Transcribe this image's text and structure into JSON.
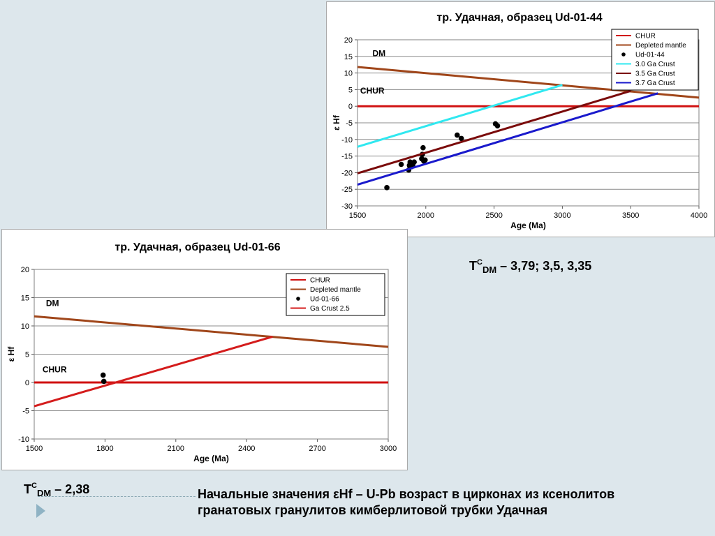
{
  "captions": {
    "tdm1_label": "T",
    "tdm1_sup": "C",
    "tdm1_sub": "DM",
    "tdm1_values": " – 3,79;  3,5, 3,35",
    "tdm2_label": "T",
    "tdm2_sup": "C",
    "tdm2_sub": "DM",
    "tdm2_values": " – 2,38",
    "footer_line1": "Начальные значения εHf – U-Pb возраст в цирконах из ксенолитов",
    "footer_line2": "гранатовых гранулитов кимберлитовой  трубки Удачная"
  },
  "chart_data": [
    {
      "type": "line",
      "title": "тр. Удачная, образец Ud-01-44",
      "xlabel": "Age (Ma)",
      "ylabel": "ε Hf",
      "xlim": [
        1500,
        4000
      ],
      "ylim": [
        -30,
        20
      ],
      "xticks": [
        1500,
        2000,
        2500,
        3000,
        3500,
        4000
      ],
      "yticks": [
        -30,
        -25,
        -20,
        -15,
        -10,
        -5,
        0,
        5,
        10,
        15,
        20
      ],
      "grid": true,
      "legend_position": "top-right",
      "annotations": [
        {
          "text": "DM",
          "x": 1610,
          "y": 15.1
        },
        {
          "text": "CHUR",
          "x": 1520,
          "y": 3.8
        }
      ],
      "series": [
        {
          "name": "CHUR",
          "kind": "line",
          "color": "#d01010",
          "x": [
            1500,
            4000
          ],
          "y": [
            0,
            0
          ]
        },
        {
          "name": "Depleted mantle",
          "kind": "line",
          "color": "#a0461a",
          "x": [
            1500,
            4000
          ],
          "y": [
            11.8,
            2.6
          ]
        },
        {
          "name": "Ud-01-44",
          "kind": "scatter",
          "color": "#000000",
          "x": [
            1715,
            1820,
            1875,
            1880,
            1885,
            1895,
            1905,
            1915,
            1970,
            1975,
            1980,
            1985,
            1995,
            2230,
            2260,
            2510,
            2525
          ],
          "y": [
            -24.5,
            -17.5,
            -19.2,
            -17.8,
            -16.8,
            -18.2,
            -17.6,
            -16.8,
            -15.8,
            -14.5,
            -12.5,
            -16.5,
            -16.2,
            -8.7,
            -9.7,
            -5.3,
            -5.9
          ]
        },
        {
          "name": "3.0 Ga Crust",
          "kind": "line",
          "color": "#30e8f0",
          "x": [
            1500,
            3000
          ],
          "y": [
            -12.2,
            6.4
          ]
        },
        {
          "name": "3.5 Ga Crust",
          "kind": "line",
          "color": "#7a0a0a",
          "x": [
            1500,
            3500
          ],
          "y": [
            -20.2,
            4.6
          ]
        },
        {
          "name": "3.7 Ga Crust",
          "kind": "line",
          "color": "#1a1acc",
          "x": [
            1500,
            3700
          ],
          "y": [
            -23.6,
            3.9
          ]
        }
      ]
    },
    {
      "type": "line",
      "title": "тр. Удачная, образец  Ud-01-66",
      "xlabel": "Age (Ma)",
      "ylabel": "ε Hf",
      "xlim": [
        1500,
        3000
      ],
      "ylim": [
        -10,
        20
      ],
      "xticks": [
        1500,
        1800,
        2100,
        2400,
        2700,
        3000
      ],
      "yticks": [
        -10,
        -5,
        0,
        5,
        10,
        15,
        20
      ],
      "grid": true,
      "legend_position": "top-right",
      "annotations": [
        {
          "text": "DM",
          "x": 1550,
          "y": 13.5
        },
        {
          "text": "CHUR",
          "x": 1535,
          "y": 1.8
        }
      ],
      "series": [
        {
          "name": "CHUR",
          "kind": "line",
          "color": "#d01010",
          "x": [
            1500,
            3000
          ],
          "y": [
            0,
            0
          ]
        },
        {
          "name": "Depleted mantle",
          "kind": "line",
          "color": "#a0461a",
          "x": [
            1500,
            3000
          ],
          "y": [
            11.7,
            6.3
          ]
        },
        {
          "name": "Ud-01-66",
          "kind": "scatter",
          "color": "#000000",
          "x": [
            1792,
            1795
          ],
          "y": [
            1.3,
            0.2
          ]
        },
        {
          "name": "Ga Crust 2.5",
          "kind": "line",
          "color": "#d41c1c",
          "x": [
            1500,
            2510
          ],
          "y": [
            -4.2,
            8.1
          ]
        }
      ]
    }
  ]
}
